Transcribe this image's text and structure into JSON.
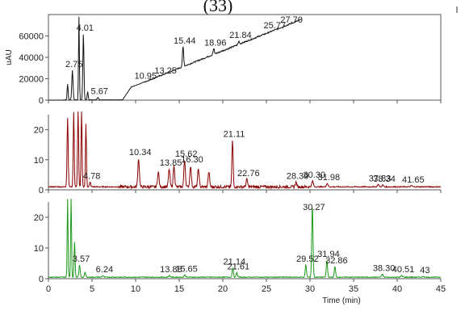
{
  "figure_title": "(33)",
  "chart_data": [
    {
      "type": "line",
      "panel": "top",
      "ylabel": "uAU",
      "yticks": [
        0,
        20000,
        40000,
        60000
      ],
      "ylim": [
        0,
        80000
      ],
      "xlim": [
        0,
        45
      ],
      "grid": false,
      "color": "#111111",
      "peaks": [
        {
          "label": "2.75",
          "x": 2.75,
          "y": 28000,
          "w": 0.1
        },
        {
          "label": "4.01",
          "x": 4.01,
          "y": 62000,
          "w": 0.09
        },
        {
          "label": "5.67",
          "x": 5.67,
          "y": 2500,
          "w": 0.12
        },
        {
          "label": "10.95",
          "x": 10.95,
          "y": 17000,
          "w": 0.2
        },
        {
          "label": "13.25",
          "x": 13.25,
          "y": 22000,
          "w": 0.12
        },
        {
          "label": "15.44",
          "x": 15.44,
          "y": 50000,
          "w": 0.1
        },
        {
          "label": "18.96",
          "x": 18.96,
          "y": 48000,
          "w": 0.1
        },
        {
          "label": "21.84",
          "x": 21.84,
          "y": 55000,
          "w": 0.1
        },
        {
          "label": "25.77",
          "x": 25.77,
          "y": 64000,
          "w": 0.1
        },
        {
          "label": "27.70",
          "x": 27.7,
          "y": 70000,
          "w": 0.1
        }
      ]
    },
    {
      "type": "line",
      "panel": "middle",
      "yticks": [
        0,
        10,
        20
      ],
      "ylim": [
        0,
        25
      ],
      "xlim": [
        0,
        45
      ],
      "grid": false,
      "color": "#8b0000",
      "peaks": [
        {
          "label": "4.78",
          "x": 4.78,
          "y": 2.5,
          "w": 0.1
        },
        {
          "label": "10.34",
          "x": 10.34,
          "y": 10.5,
          "w": 0.12
        },
        {
          "label": "13.85",
          "x": 13.85,
          "y": 7.0,
          "w": 0.12
        },
        {
          "label": "15.62",
          "x": 15.62,
          "y": 10.0,
          "w": 0.12
        },
        {
          "label": "16.30",
          "x": 16.3,
          "y": 8.0,
          "w": 0.12
        },
        {
          "label": "21.11",
          "x": 21.11,
          "y": 16.5,
          "w": 0.1
        },
        {
          "label": "22.76",
          "x": 22.76,
          "y": 3.5,
          "w": 0.12
        },
        {
          "label": "28.39",
          "x": 28.39,
          "y": 2.5,
          "w": 0.12
        },
        {
          "label": "30.30",
          "x": 30.3,
          "y": 3.0,
          "w": 0.12
        },
        {
          "label": "31.98",
          "x": 31.98,
          "y": 2.2,
          "w": 0.12
        },
        {
          "label": "37.83",
          "x": 37.83,
          "y": 1.8,
          "w": 0.12
        },
        {
          "label": "38.34",
          "x": 38.34,
          "y": 1.6,
          "w": 0.12
        },
        {
          "label": "41.65",
          "x": 41.65,
          "y": 1.4,
          "w": 0.12
        }
      ]
    },
    {
      "type": "line",
      "panel": "bottom",
      "xlabel": "Time (min)",
      "xticks": [
        0,
        5,
        10,
        15,
        20,
        25,
        30,
        35,
        40,
        45
      ],
      "yticks": [
        0,
        10,
        20
      ],
      "ylim": [
        0,
        25
      ],
      "xlim": [
        0,
        45
      ],
      "grid": false,
      "color": "#1a9a1a",
      "peaks": [
        {
          "label": "3.57",
          "x": 3.57,
          "y": 4.5,
          "w": 0.1
        },
        {
          "label": "6.24",
          "x": 6.24,
          "y": 1.0,
          "w": 0.12
        },
        {
          "label": "13.88",
          "x": 13.88,
          "y": 1.0,
          "w": 0.12
        },
        {
          "label": "15.65",
          "x": 15.65,
          "y": 1.2,
          "w": 0.12
        },
        {
          "label": "21.14",
          "x": 21.14,
          "y": 3.5,
          "w": 0.1
        },
        {
          "label": "21.61",
          "x": 21.61,
          "y": 2.0,
          "w": 0.1
        },
        {
          "label": "29.52",
          "x": 29.52,
          "y": 4.5,
          "w": 0.1
        },
        {
          "label": "30.27",
          "x": 30.27,
          "y": 24.0,
          "w": 0.1
        },
        {
          "label": "31.94",
          "x": 31.94,
          "y": 6.0,
          "w": 0.1
        },
        {
          "label": "32.86",
          "x": 32.86,
          "y": 4.0,
          "w": 0.1
        },
        {
          "label": "38.30",
          "x": 38.3,
          "y": 1.5,
          "w": 0.12
        },
        {
          "label": "40.51",
          "x": 40.51,
          "y": 1.0,
          "w": 0.12
        },
        {
          "label": "43",
          "x": 43.0,
          "y": 0.8,
          "w": 0.12
        }
      ]
    }
  ]
}
